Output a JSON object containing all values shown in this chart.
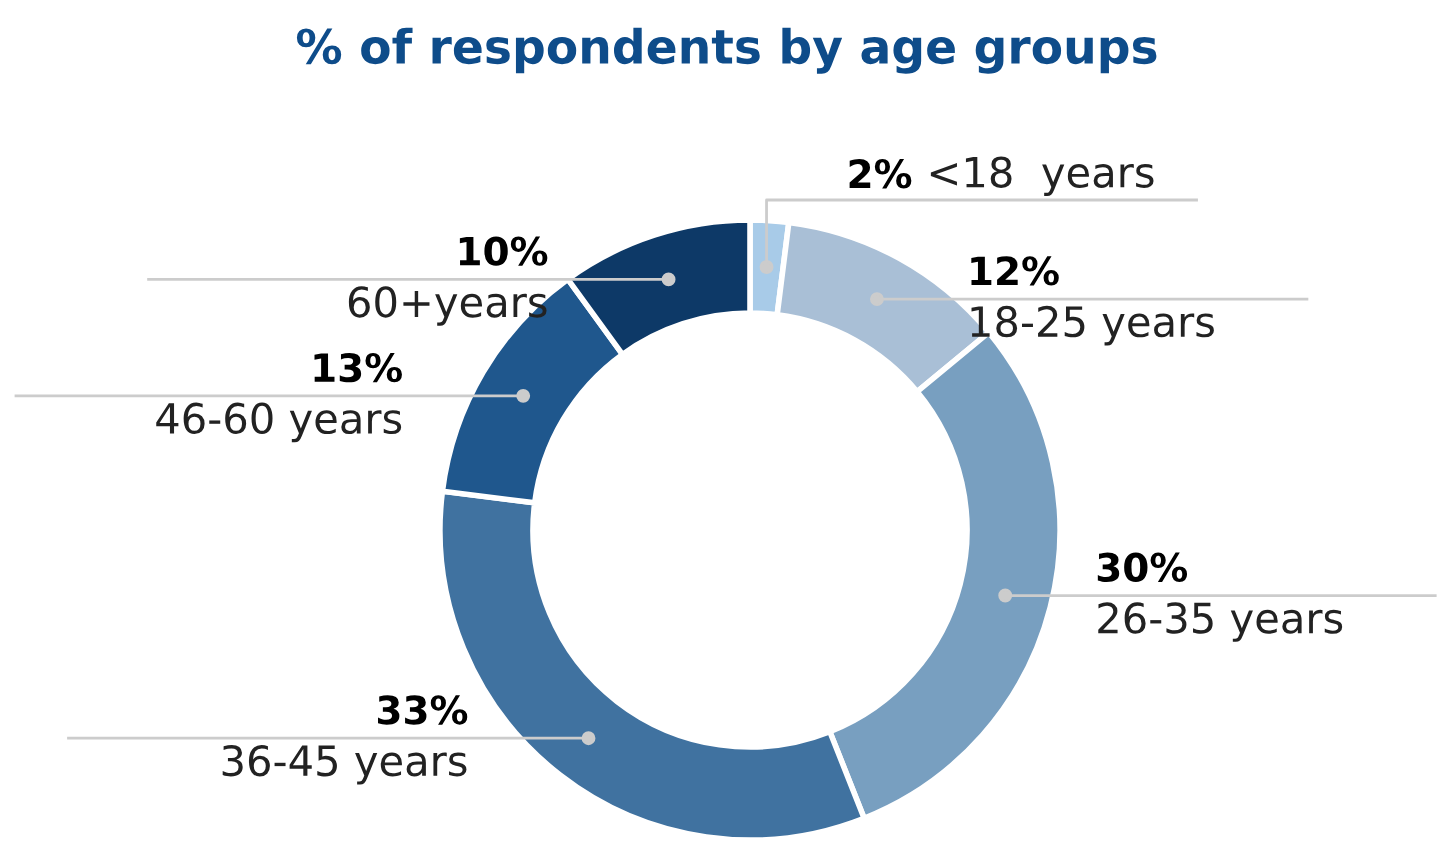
{
  "chart_data": {
    "type": "donut",
    "title": "% of respondents by age groups",
    "categories": [
      "<18  years",
      "18-25 years",
      "26-35 years",
      "36-45 years",
      "46-60 years",
      "60+years"
    ],
    "values": [
      2,
      12,
      30,
      33,
      13,
      10
    ],
    "value_labels": [
      "2%",
      "12%",
      "30%",
      "33%",
      "13%",
      "10%"
    ],
    "colors": [
      "#a8cbe8",
      "#a9bfd6",
      "#789fc0",
      "#4072a0",
      "#1f578d",
      "#0d3967"
    ],
    "legend": false
  }
}
